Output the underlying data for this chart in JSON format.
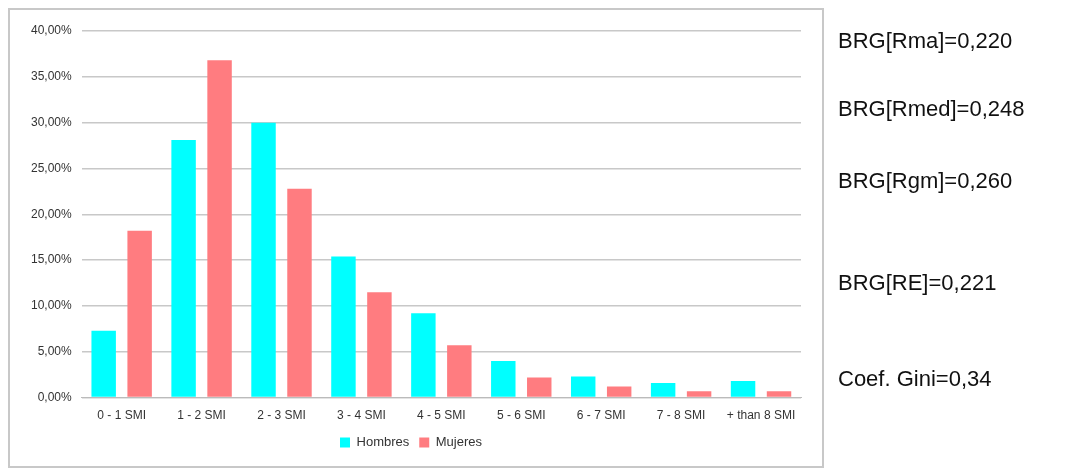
{
  "chart_data": {
    "type": "bar",
    "categories": [
      "0 - 1 SMI",
      "1 - 2 SMI",
      "2 - 3 SMI",
      "3 - 4 SMI",
      "4 - 5 SMI",
      "5 - 6 SMI",
      "6 - 7 SMI",
      "7 - 8 SMI",
      "+ than 8 SMI"
    ],
    "series": [
      {
        "name": "Hombres",
        "color": "#00ffff",
        "values": [
          7.3,
          28.1,
          30.0,
          15.4,
          9.2,
          4.0,
          2.3,
          1.6,
          1.8
        ]
      },
      {
        "name": "Mujeres",
        "color": "#ff7c80",
        "values": [
          18.2,
          36.8,
          22.8,
          11.5,
          5.7,
          2.2,
          1.2,
          0.7,
          0.7
        ]
      }
    ],
    "ylim": [
      0,
      40
    ],
    "yticks": [
      {
        "value": 0,
        "label": "0,00%"
      },
      {
        "value": 5,
        "label": "5,00%"
      },
      {
        "value": 10,
        "label": "10,00%"
      },
      {
        "value": 15,
        "label": "15,00%"
      },
      {
        "value": 20,
        "label": "20,00%"
      },
      {
        "value": 25,
        "label": "25,00%"
      },
      {
        "value": 30,
        "label": "30,00%"
      },
      {
        "value": 35,
        "label": "35,00%"
      },
      {
        "value": 40,
        "label": "40,00%"
      }
    ],
    "grid": "y",
    "legend": "bottom",
    "annotations": [
      "BRG[Rma]=0,220",
      "BRG[Rmed]=0,248",
      "BRG[Rgm]=0,260",
      "BRG[RE]=0,221",
      "Coef. Gini=0,34"
    ]
  }
}
